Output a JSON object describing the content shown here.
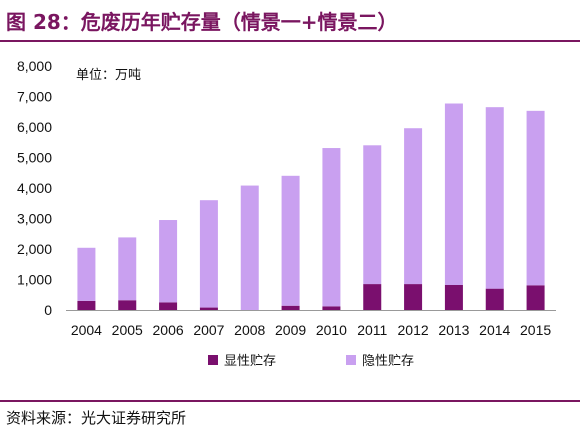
{
  "header": {
    "title": "图 28：危废历年贮存量（情景一+情景二）"
  },
  "footer": {
    "source": "资料来源：光大证券研究所"
  },
  "colors": {
    "accent": "#7a1660",
    "series_visible": "#7a0f6e",
    "series_hidden": "#c9a0f0"
  },
  "chart_data": {
    "type": "bar",
    "stacked": true,
    "unit_label": "单位：万吨",
    "categories": [
      "2004",
      "2005",
      "2006",
      "2007",
      "2008",
      "2009",
      "2010",
      "2011",
      "2012",
      "2013",
      "2014",
      "2015"
    ],
    "series": [
      {
        "name": "显性贮存",
        "values": [
          300,
          320,
          250,
          80,
          0,
          140,
          120,
          850,
          850,
          820,
          700,
          810
        ]
      },
      {
        "name": "隐性贮存",
        "values": [
          1740,
          2060,
          2700,
          3520,
          4080,
          4260,
          5190,
          4550,
          5110,
          5950,
          5950,
          5720
        ]
      }
    ],
    "ylim": [
      0,
      8000
    ],
    "yticks": [
      "0",
      "1,000",
      "2,000",
      "3,000",
      "4,000",
      "5,000",
      "6,000",
      "7,000",
      "8,000"
    ],
    "legend_position": "bottom",
    "grid": false
  }
}
